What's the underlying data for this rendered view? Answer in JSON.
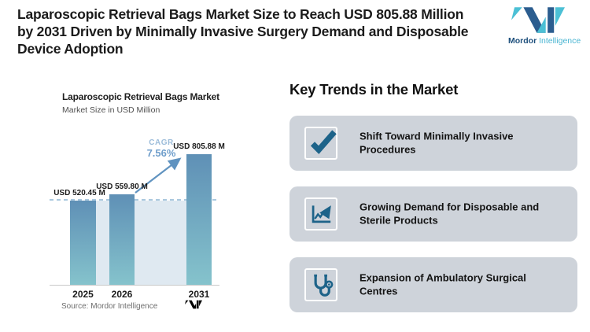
{
  "header": {
    "title": "Laparoscopic Retrieval Bags Market Size to Reach USD 805.88 Million\nby 2031 Driven by Minimally Invasive Surgery Demand and Disposable\nDevice Adoption",
    "logo": {
      "brand_primary": "Mordor",
      "brand_secondary": " Intelligence",
      "colors": {
        "primary": "#2b5d8f",
        "accent": "#4cc0d5",
        "text_primary": "#1d4f7c",
        "text_accent": "#4ab5d2"
      }
    }
  },
  "chart_data": {
    "type": "bar",
    "title": "Laparoscopic Retrieval Bags Market",
    "subtitle": "Market Size in USD Million",
    "categories": [
      "2025",
      "2026",
      "2031"
    ],
    "values": [
      520.45,
      559.8,
      805.88
    ],
    "bar_labels": [
      "USD 520.45 M",
      "USD 559.80 M",
      "USD 805.88 M"
    ],
    "unit": "USD Million",
    "ylim": [
      0,
      805.88
    ],
    "reference_line_value": 520.45,
    "grid": "off",
    "legend": "off",
    "cagr": {
      "label": "CAGR",
      "value": "7.56%"
    },
    "source": "Source: Mordor Intelligence",
    "colors": {
      "bar_top": "#5f90b6",
      "bar_bottom": "#85c3cc",
      "band": "#dfe9f1",
      "dashed_line": "#aac8de",
      "cagr_label": "#9dbdda",
      "cagr_value": "#6f9ecb",
      "arrow": "#6093c0"
    }
  },
  "trends": {
    "heading": "Key Trends in the Market",
    "card_bg": "#ced3da",
    "icon_color": "#1d6389",
    "items": [
      {
        "icon": "check-icon",
        "label": "Shift Toward Minimally Invasive\nProcedures"
      },
      {
        "icon": "line-chart-icon",
        "label": "Growing Demand for Disposable and\nSterile Products"
      },
      {
        "icon": "stethoscope-icon",
        "label": "Expansion of Ambulatory Surgical\nCentres"
      }
    ]
  }
}
